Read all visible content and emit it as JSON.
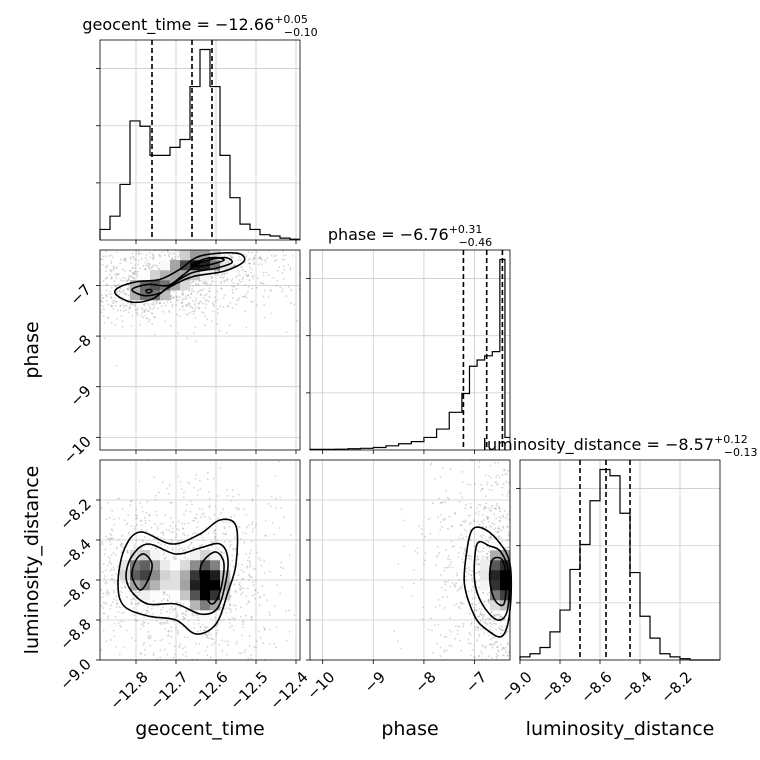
{
  "chart_data": {
    "type": "corner",
    "parameters": [
      "geocent_time",
      "phase",
      "luminosity_distance"
    ],
    "axis_labels": {
      "geocent_time": "geocent_time",
      "phase": "phase",
      "luminosity_distance": "luminosity_distance"
    },
    "titles": [
      {
        "param": "geocent_time",
        "name": "geocent_time",
        "median": "−12.66",
        "plus": "+0.05",
        "minus": "−0.10"
      },
      {
        "param": "phase",
        "name": "phase",
        "median": "−6.76",
        "plus": "+0.31",
        "minus": "−0.46"
      },
      {
        "param": "luminosity_distance",
        "name": "luminosity_distance",
        "median": "−8.57",
        "plus": "+0.12",
        "minus": "−0.13"
      }
    ],
    "ranges": {
      "geocent_time": [
        -12.89,
        -12.39
      ],
      "phase": [
        -10.25,
        -6.3
      ],
      "luminosity_distance": [
        -9.0,
        -8.0
      ]
    },
    "ticks": {
      "geocent_time": [
        -12.8,
        -12.7,
        -12.6,
        -12.5,
        -12.4
      ],
      "phase_y": [
        -7,
        -8,
        -9,
        -10
      ],
      "phase_x": [
        -10,
        -9,
        -8,
        -7
      ],
      "luminosity_distance_y": [
        -8.2,
        -8.4,
        -8.6,
        -8.8,
        -9.0
      ],
      "luminosity_distance_x": [
        -9.0,
        -8.8,
        -8.6,
        -8.4,
        -8.2
      ]
    },
    "tick_labels": {
      "geocent_time": [
        "−12.8",
        "−12.7",
        "−12.6",
        "−12.5",
        "−12.4"
      ],
      "phase_y": [
        "−7",
        "−8",
        "−9",
        "−10"
      ],
      "phase_x": [
        "−10",
        "−9",
        "−8",
        "−7"
      ],
      "luminosity_distance_y": [
        "−8.2",
        "−8.4",
        "−8.6",
        "−8.8",
        "−9.0"
      ],
      "luminosity_distance_x": [
        "−9.0",
        "−8.8",
        "−8.6",
        "−8.4",
        "−8.2"
      ]
    },
    "quantile_lines": {
      "geocent_time": [
        -12.76,
        -12.66,
        -12.61
      ],
      "phase": [
        -7.22,
        -6.76,
        -6.45
      ],
      "luminosity_distance": [
        -8.7,
        -8.57,
        -8.45
      ]
    },
    "histograms": {
      "geocent_time": {
        "edges": [
          -12.89,
          -12.865,
          -12.84,
          -12.815,
          -12.79,
          -12.765,
          -12.74,
          -12.715,
          -12.69,
          -12.665,
          -12.64,
          -12.615,
          -12.59,
          -12.565,
          -12.54,
          -12.515,
          -12.49,
          -12.465,
          -12.44,
          -12.415,
          -12.39
        ],
        "counts": [
          0.04,
          0.09,
          0.21,
          0.45,
          0.43,
          0.32,
          0.32,
          0.35,
          0.38,
          0.58,
          0.72,
          0.58,
          0.32,
          0.16,
          0.06,
          0.04,
          0.02,
          0.015,
          0.007,
          0.003
        ]
      },
      "phase": {
        "edges": [
          -10.25,
          -10.0,
          -9.75,
          -9.5,
          -9.25,
          -9.0,
          -8.75,
          -8.5,
          -8.25,
          -8.0,
          -7.75,
          -7.5,
          -7.25,
          -7.1,
          -6.95,
          -6.8,
          -6.65,
          -6.5,
          -6.4,
          -6.3
        ],
        "counts": [
          0.003,
          0.003,
          0.004,
          0.006,
          0.008,
          0.012,
          0.02,
          0.03,
          0.04,
          0.06,
          0.1,
          0.18,
          0.27,
          0.4,
          0.43,
          0.45,
          0.47,
          0.91,
          0.06
        ]
      },
      "luminosity_distance": {
        "edges": [
          -9.0,
          -8.95,
          -8.9,
          -8.85,
          -8.8,
          -8.75,
          -8.7,
          -8.65,
          -8.6,
          -8.55,
          -8.5,
          -8.45,
          -8.4,
          -8.35,
          -8.3,
          -8.25,
          -8.2,
          -8.15,
          -8.1,
          -8.05,
          -8.0
        ],
        "counts": [
          0.01,
          0.02,
          0.04,
          0.09,
          0.16,
          0.29,
          0.37,
          0.51,
          0.61,
          0.59,
          0.47,
          0.28,
          0.14,
          0.07,
          0.02,
          0.01,
          0.004,
          0.0,
          0.0,
          0.0
        ]
      }
    },
    "hist2d": {
      "phase_vs_geocent_time": {
        "x": "geocent_time",
        "y": "phase",
        "blobs": [
          {
            "cx": -12.77,
            "cy": -7.12,
            "sx": 0.045,
            "sy": 0.15,
            "w": 0.75
          },
          {
            "cx": -12.64,
            "cy": -6.52,
            "sx": 0.05,
            "sy": 0.12,
            "w": 1.0
          },
          {
            "cx": -12.7,
            "cy": -6.85,
            "sx": 0.07,
            "sy": 0.18,
            "w": 0.55
          }
        ],
        "contours": [
          {
            "level": 1,
            "points": [
              [
                -12.845,
                -7.05
              ],
              [
                -12.8,
                -6.93
              ],
              [
                -12.74,
                -6.88
              ],
              [
                -12.69,
                -6.68
              ],
              [
                -12.64,
                -6.42
              ],
              [
                -12.55,
                -6.36
              ],
              [
                -12.53,
                -6.52
              ],
              [
                -12.58,
                -6.72
              ],
              [
                -12.66,
                -6.83
              ],
              [
                -12.72,
                -7.05
              ],
              [
                -12.76,
                -7.27
              ],
              [
                -12.81,
                -7.33
              ],
              [
                -12.85,
                -7.18
              ]
            ]
          },
          {
            "level": 2,
            "points": [
              [
                -12.81,
                -7.08
              ],
              [
                -12.77,
                -6.98
              ],
              [
                -12.72,
                -7.0
              ],
              [
                -12.68,
                -6.78
              ],
              [
                -12.64,
                -6.55
              ],
              [
                -12.58,
                -6.45
              ],
              [
                -12.56,
                -6.55
              ],
              [
                -12.6,
                -6.66
              ],
              [
                -12.66,
                -6.75
              ],
              [
                -12.71,
                -6.98
              ],
              [
                -12.74,
                -7.15
              ],
              [
                -12.78,
                -7.2
              ]
            ]
          },
          {
            "level": 3,
            "points": [
              [
                -12.775,
                -7.1
              ],
              [
                -12.765,
                -7.08
              ],
              [
                -12.76,
                -7.12
              ],
              [
                -12.77,
                -7.15
              ]
            ]
          },
          {
            "level": 3,
            "points": [
              [
                -12.66,
                -6.6
              ],
              [
                -12.63,
                -6.48
              ],
              [
                -12.6,
                -6.45
              ],
              [
                -12.58,
                -6.5
              ],
              [
                -12.61,
                -6.58
              ],
              [
                -12.64,
                -6.62
              ]
            ]
          }
        ]
      },
      "luminosity_distance_vs_geocent_time": {
        "x": "geocent_time",
        "y": "luminosity_distance",
        "blobs": [
          {
            "cx": -12.62,
            "cy": -8.62,
            "sx": 0.035,
            "sy": 0.1,
            "w": 1.0
          },
          {
            "cx": -12.79,
            "cy": -8.56,
            "sx": 0.035,
            "sy": 0.08,
            "w": 0.7
          },
          {
            "cx": -12.7,
            "cy": -8.6,
            "sx": 0.07,
            "sy": 0.12,
            "w": 0.35
          }
        ],
        "contours": [
          {
            "level": 1,
            "points": [
              [
                -12.83,
                -8.45
              ],
              [
                -12.79,
                -8.36
              ],
              [
                -12.71,
                -8.42
              ],
              [
                -12.64,
                -8.37
              ],
              [
                -12.59,
                -8.3
              ],
              [
                -12.55,
                -8.33
              ],
              [
                -12.55,
                -8.52
              ],
              [
                -12.57,
                -8.66
              ],
              [
                -12.6,
                -8.82
              ],
              [
                -12.65,
                -8.87
              ],
              [
                -12.7,
                -8.8
              ],
              [
                -12.77,
                -8.78
              ],
              [
                -12.83,
                -8.73
              ],
              [
                -12.845,
                -8.62
              ]
            ]
          },
          {
            "level": 2,
            "points": [
              [
                -12.81,
                -8.48
              ],
              [
                -12.77,
                -8.42
              ],
              [
                -12.7,
                -8.47
              ],
              [
                -12.64,
                -8.44
              ],
              [
                -12.59,
                -8.42
              ],
              [
                -12.57,
                -8.5
              ],
              [
                -12.58,
                -8.65
              ],
              [
                -12.6,
                -8.75
              ],
              [
                -12.64,
                -8.77
              ],
              [
                -12.7,
                -8.72
              ],
              [
                -12.77,
                -8.72
              ],
              [
                -12.81,
                -8.66
              ],
              [
                -12.825,
                -8.58
              ]
            ]
          },
          {
            "level": 3,
            "points": [
              [
                -12.8,
                -8.5
              ],
              [
                -12.78,
                -8.47
              ],
              [
                -12.76,
                -8.52
              ],
              [
                -12.77,
                -8.6
              ],
              [
                -12.79,
                -8.65
              ],
              [
                -12.81,
                -8.58
              ]
            ]
          },
          {
            "level": 3,
            "points": [
              [
                -12.63,
                -8.5
              ],
              [
                -12.6,
                -8.46
              ],
              [
                -12.58,
                -8.52
              ],
              [
                -12.59,
                -8.66
              ],
              [
                -12.61,
                -8.72
              ],
              [
                -12.63,
                -8.66
              ],
              [
                -12.64,
                -8.56
              ]
            ]
          }
        ]
      },
      "luminosity_distance_vs_phase": {
        "x": "phase",
        "y": "luminosity_distance",
        "blobs": [
          {
            "cx": -6.45,
            "cy": -8.6,
            "sx": 0.15,
            "sy": 0.1,
            "w": 1.0
          },
          {
            "cx": -6.75,
            "cy": -8.55,
            "sx": 0.3,
            "sy": 0.15,
            "w": 0.35
          }
        ],
        "contours": [
          {
            "level": 1,
            "points": [
              [
                -7.05,
                -8.35
              ],
              [
                -6.85,
                -8.34
              ],
              [
                -6.55,
                -8.4
              ],
              [
                -6.3,
                -8.52
              ],
              [
                -6.3,
                -8.75
              ],
              [
                -6.45,
                -8.88
              ],
              [
                -6.75,
                -8.85
              ],
              [
                -7.0,
                -8.78
              ],
              [
                -7.2,
                -8.62
              ],
              [
                -7.15,
                -8.45
              ]
            ]
          },
          {
            "level": 2,
            "points": [
              [
                -6.95,
                -8.42
              ],
              [
                -6.7,
                -8.43
              ],
              [
                -6.48,
                -8.46
              ],
              [
                -6.33,
                -8.56
              ],
              [
                -6.35,
                -8.75
              ],
              [
                -6.55,
                -8.8
              ],
              [
                -6.85,
                -8.72
              ],
              [
                -7.0,
                -8.6
              ]
            ]
          },
          {
            "level": 3,
            "points": [
              [
                -6.65,
                -8.5
              ],
              [
                -6.45,
                -8.5
              ],
              [
                -6.38,
                -8.6
              ],
              [
                -6.42,
                -8.72
              ],
              [
                -6.6,
                -8.7
              ],
              [
                -6.7,
                -8.6
              ]
            ]
          }
        ]
      }
    },
    "grid": true
  }
}
